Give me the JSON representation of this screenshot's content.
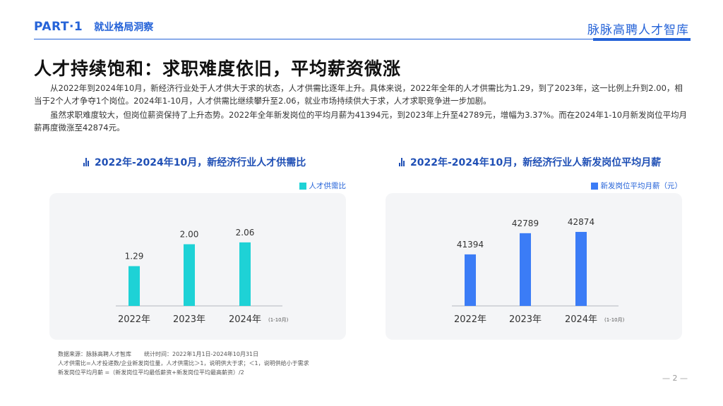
{
  "header": {
    "part": "PART·1",
    "section": "就业格局洞察",
    "brand": "脉脉高聘人才智库"
  },
  "title": "人才持续饱和：求职难度依旧，平均薪资微涨",
  "paragraphs": [
    "从2022年到2024年10月，新经济行业处于人才供大于求的状态，人才供需比逐年上升。具体来说，2022年全年的人才供需比为1.29，到了2023年，这一比例上升到2.00，相当于2个人才争夺1个岗位。2024年1-10月，人才供需比继续攀升至2.06，就业市场持续供大于求，人才求职竞争进一步加剧。",
    "虽然求职难度较大，但岗位薪资保持了上升态势。2022年全年新发岗位的平均月薪为41394元，到2023年上升至42789元，增幅为3.37%。而在2024年1-10月新发岗位平均月薪再度微涨至42874元。"
  ],
  "chart_data": [
    {
      "type": "bar",
      "title": "2022年-2024年10月，新经济行业人才供需比",
      "categories": [
        "2022年",
        "2023年",
        "2024年"
      ],
      "category_note": "(1-10月)",
      "series": [
        {
          "name": "人才供需比",
          "values": [
            1.29,
            2.0,
            2.06
          ],
          "labels": [
            "1.29",
            "2.00",
            "2.06"
          ]
        }
      ],
      "ylim": [
        0,
        3.2
      ],
      "color": "#1ed2d6",
      "legend": "top-right",
      "grid": false
    },
    {
      "type": "bar",
      "title": "2022年-2024年10月，新经济行业人新发岗位平均月薪",
      "categories": [
        "2022年",
        "2023年",
        "2024年"
      ],
      "category_note": "(1-10月)",
      "series": [
        {
          "name": "新发岗位平均月薪（元）",
          "values": [
            41394,
            42789,
            42874
          ],
          "labels": [
            "41394",
            "42789",
            "42874"
          ]
        }
      ],
      "ylim": [
        38000,
        44500
      ],
      "color": "#3b7cf6",
      "legend": "top-right",
      "grid": false
    }
  ],
  "footnote": {
    "source": "数据来源：脉脉高聘人才智库",
    "period": "统计时间：2022年1月1日-2024年10月31日",
    "line2": "人才供需比=人才投递数/企业新发岗位量，人才供需比＞1，说明供大于求；＜1，说明供给小于需求",
    "line3": "新发岗位平均月薪 =（新发岗位平均最低薪资+新发岗位平均最高薪资）/2"
  },
  "page_number": "— 2 —"
}
